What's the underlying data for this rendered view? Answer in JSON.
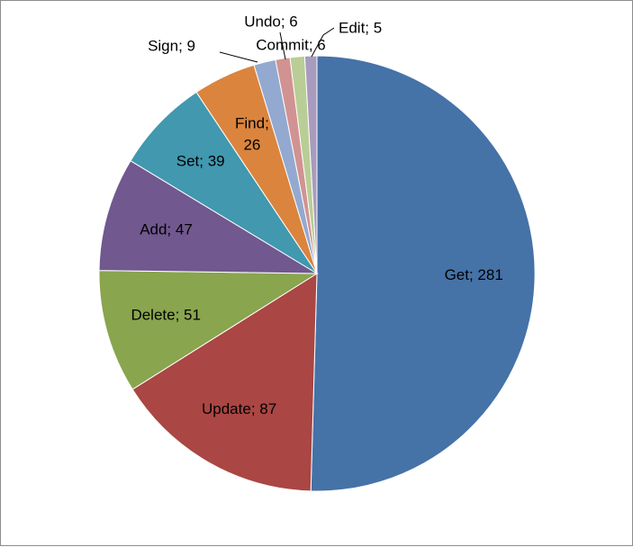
{
  "chart_data": {
    "type": "pie",
    "categories": [
      "Get",
      "Update",
      "Delete",
      "Add",
      "Set",
      "Find",
      "Sign",
      "Undo",
      "Commit",
      "Edit"
    ],
    "values": [
      281,
      87,
      51,
      47,
      39,
      26,
      9,
      6,
      6,
      5
    ],
    "labels": [
      "Get; 281",
      "Update; 87",
      "Delete; 51",
      "Add; 47",
      "Set; 39",
      "Find; 26",
      "Sign; 9",
      "Undo; 6",
      "Commit; 6",
      "Edit; 5"
    ],
    "colors": [
      "#4572a7",
      "#aa4643",
      "#89a54e",
      "#71588f",
      "#4198af",
      "#db843d",
      "#93a9cf",
      "#d19392",
      "#b9cd96",
      "#a99bbd"
    ],
    "start": "12 o'clock",
    "direction": "clockwise",
    "legend": "none",
    "title": ""
  }
}
